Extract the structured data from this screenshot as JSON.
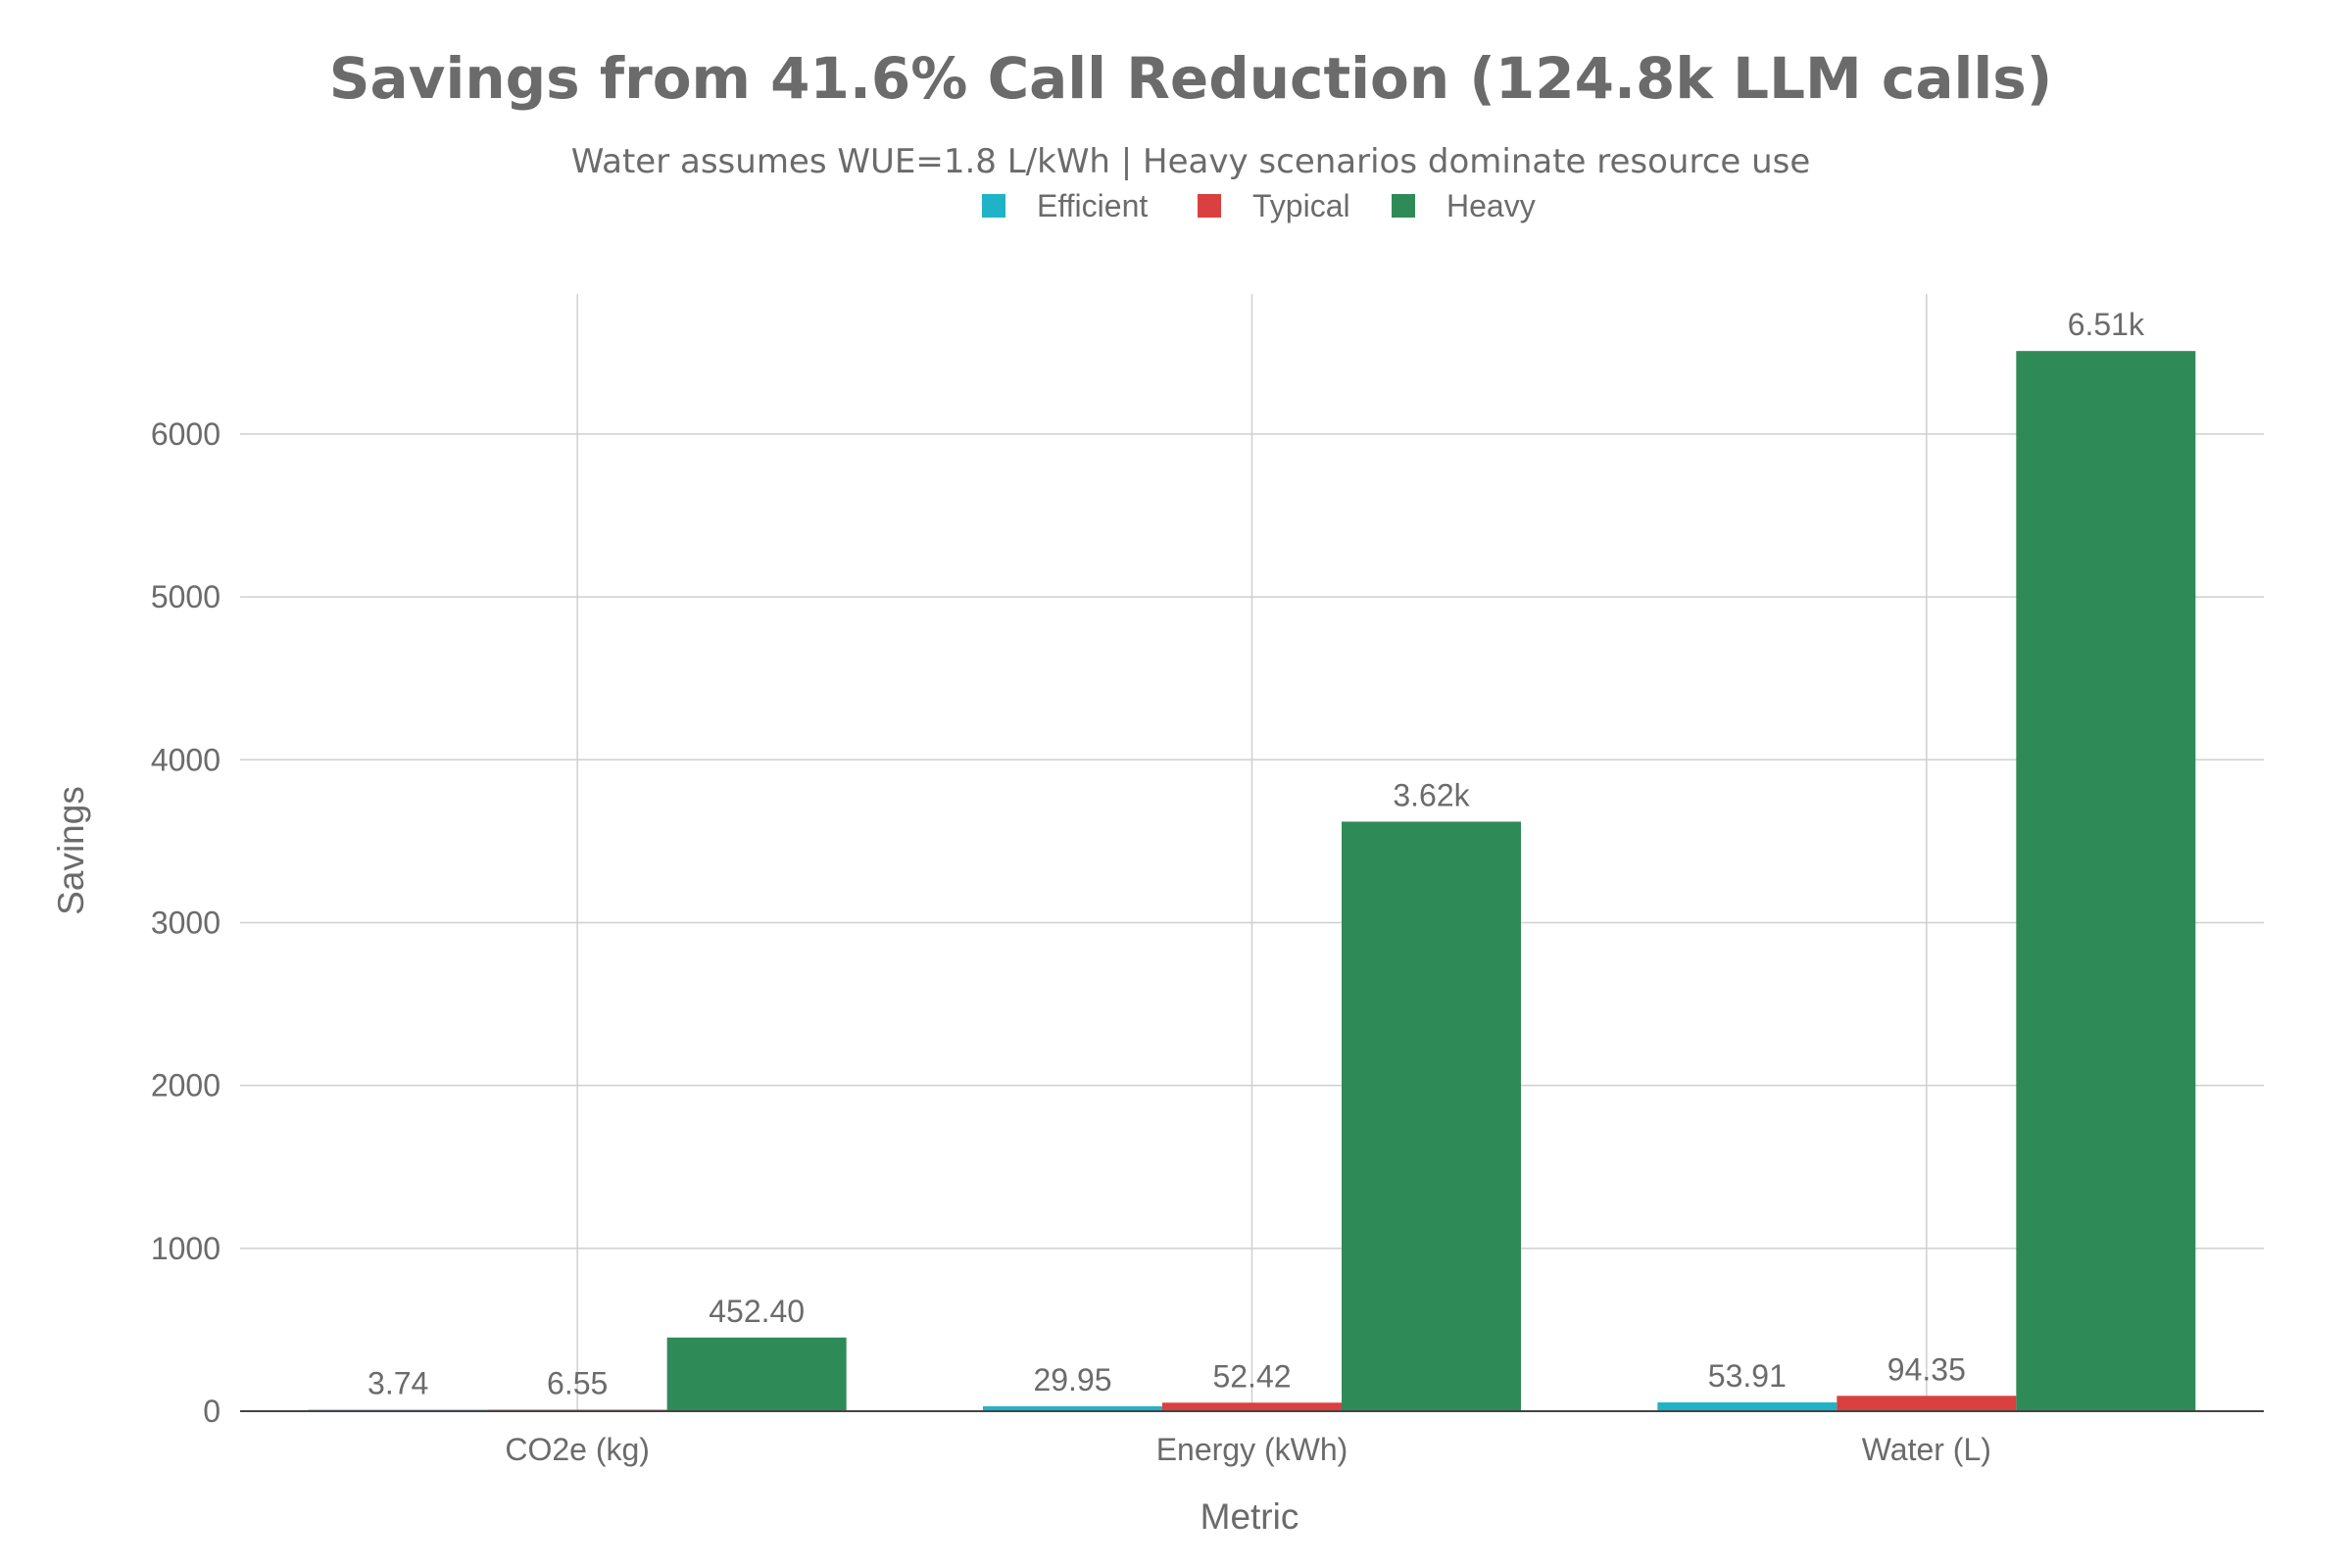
{
  "chart_data": {
    "type": "bar",
    "title": "Savings from 41.6% Call Reduction (124.8k LLM calls)",
    "subtitle": "Water assumes WUE=1.8 L/kWh | Heavy scenarios dominate resource use",
    "xlabel": "Metric",
    "ylabel": "Savings",
    "categories": [
      "CO2e (kg)",
      "Energy (kWh)",
      "Water (L)"
    ],
    "series": [
      {
        "name": "Efficient",
        "color": "#1fb3c8",
        "values": [
          3.74,
          29.95,
          53.91
        ],
        "labels": [
          "3.74",
          "29.95",
          "53.91"
        ]
      },
      {
        "name": "Typical",
        "color": "#d9403f",
        "values": [
          6.55,
          52.42,
          94.35
        ],
        "labels": [
          "6.55",
          "52.42",
          "94.35"
        ]
      },
      {
        "name": "Heavy",
        "color": "#2e8b57",
        "values": [
          452.4,
          3620,
          6510
        ],
        "labels": [
          "452.40",
          "3.62k",
          "6.51k"
        ]
      }
    ],
    "ylim": [
      0,
      6860
    ],
    "yticks": [
      0,
      1000,
      2000,
      3000,
      4000,
      5000,
      6000
    ],
    "ytick_labels": [
      "0",
      "1000",
      "2000",
      "3000",
      "4000",
      "5000",
      "6000"
    ],
    "grid": true,
    "legend": "top-center, horizontal"
  }
}
